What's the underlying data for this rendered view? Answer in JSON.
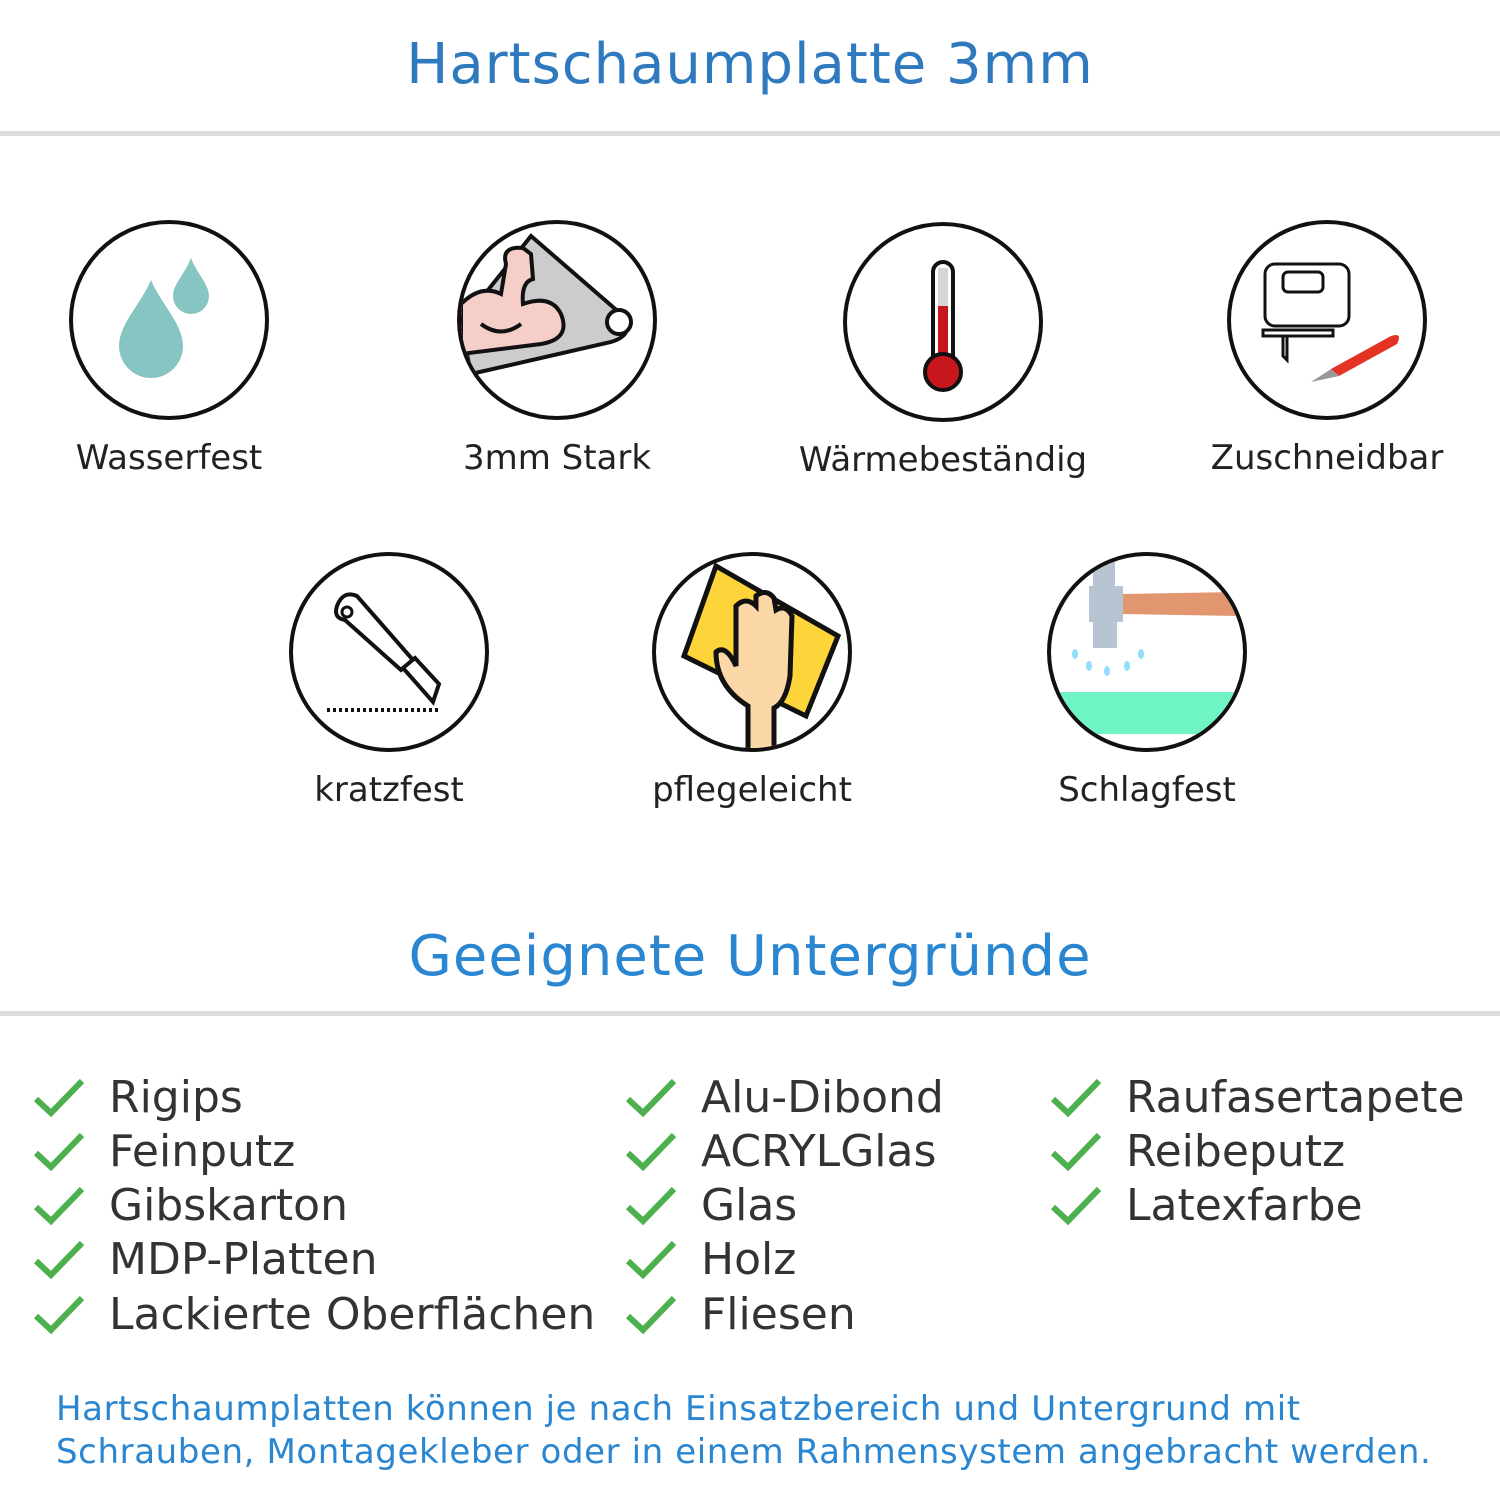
{
  "header": {
    "title": "Hartschaumplatte 3mm",
    "color": "#2f7abf"
  },
  "features": [
    {
      "label": "Wasserfest",
      "icon": "water-drops-icon"
    },
    {
      "label": "3mm Stark",
      "icon": "flexed-arm-icon"
    },
    {
      "label": "Wärmebeständig",
      "icon": "thermometer-icon"
    },
    {
      "label": "Zuschneidbar",
      "icon": "jigsaw-cutter-icon"
    },
    {
      "label": "kratzfest",
      "icon": "utility-knife-icon"
    },
    {
      "label": "pflegeleicht",
      "icon": "hand-sponge-icon"
    },
    {
      "label": "Schlagfest",
      "icon": "hammer-icon"
    }
  ],
  "surfaces": {
    "title": "Geeignete Untergründe",
    "title_color": "#2a86d0",
    "check_color": "#4cb04f",
    "columns": [
      [
        "Rigips",
        "Feinputz",
        "Gibskarton",
        "MDP-Platten",
        "Lackierte Oberflächen"
      ],
      [
        "Alu-Dibond",
        "ACRYLGlas",
        "Glas",
        "Holz",
        "Fliesen"
      ],
      [
        "Raufasertapete",
        "Reibeputz",
        "Latexfarbe"
      ]
    ]
  },
  "footer": {
    "line1": "Hartschaumplatten können je nach Einsatzbereich und Untergrund mit",
    "line2": "Schrauben, Montagekleber oder in einem Rahmensystem angebracht werden."
  }
}
